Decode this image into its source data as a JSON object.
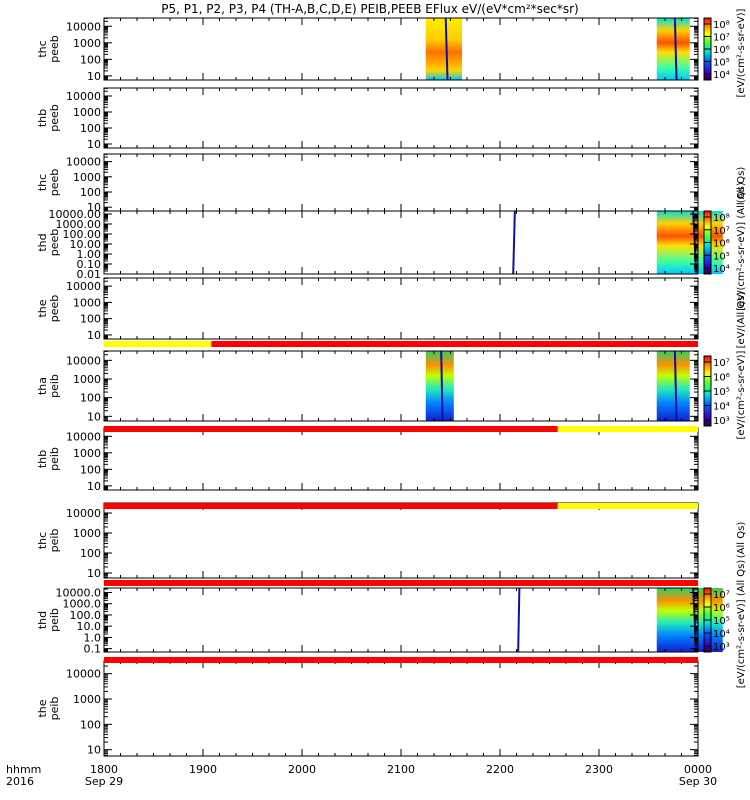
{
  "title": "P5, P1, P2, P3, P4 (TH-A,B,C,D,E) PEIB,PEEB EFlux eV/(eV*cm²*sec*sr)",
  "chart_data": {
    "type": "heatmap",
    "x_label_row1": "hhmm",
    "x_label_row2": "2016",
    "x_range": [
      "1800",
      "0000"
    ],
    "x_ticks": [
      {
        "time": 1800,
        "label": "1800",
        "sub": "Sep 29"
      },
      {
        "time": 1900,
        "label": "1900",
        "sub": ""
      },
      {
        "time": 2000,
        "label": "2000",
        "sub": ""
      },
      {
        "time": 2100,
        "label": "2100",
        "sub": ""
      },
      {
        "time": 2200,
        "label": "2200",
        "sub": ""
      },
      {
        "time": 2300,
        "label": "2300",
        "sub": ""
      },
      {
        "time": 2400,
        "label": "0000",
        "sub": "Sep 30"
      }
    ],
    "panels": [
      {
        "probe": "thc",
        "product": "peeb",
        "ylabel": "thc\npeeb",
        "yticks": [
          "10",
          "100",
          "1000",
          "10000"
        ],
        "ylim_log": [
          0.75,
          4.5
        ],
        "blocks": [
          {
            "t0": 2075,
            "t1": 2097,
            "style": "warm"
          },
          {
            "t0": 2335,
            "t1": 2355,
            "style": "mixed"
          }
        ]
      },
      {
        "probe": "thb",
        "product": "peeb",
        "ylabel": "thb\npeeb",
        "yticks": [
          "10",
          "100",
          "1000",
          "10000"
        ],
        "ylim_log": [
          0.75,
          4.5
        ],
        "blocks": []
      },
      {
        "probe": "thc",
        "product": "peeb",
        "ylabel": "thc\npeeb",
        "yticks": [
          "10",
          "100",
          "1000",
          "10000"
        ],
        "ylim_log": [
          0.75,
          4.5
        ],
        "blocks": []
      },
      {
        "probe": "thd",
        "product": "peeb",
        "ylabel": "thd\npeeb",
        "yticks": [
          "0.01",
          "0.10",
          "1.00",
          "10.00",
          "100.00",
          "1000.00",
          "10000.00"
        ],
        "ylim_log": [
          -2,
          4.3
        ],
        "blocks": [
          {
            "t0": 2180,
            "t1": 2200,
            "style": "mixed"
          },
          {
            "t0": 2335,
            "t1": 2375,
            "style": "mixed"
          }
        ]
      },
      {
        "probe": "the",
        "product": "peeb",
        "ylabel": "the\npeeb",
        "yticks": [
          "10",
          "100",
          "1000",
          "10000"
        ],
        "ylim_log": [
          0.75,
          4.5
        ],
        "blocks": []
      },
      {
        "probe": "tha",
        "product": "peib",
        "ylabel": "tha\npeib",
        "yticks": [
          "10",
          "100",
          "1000",
          "10000"
        ],
        "ylim_log": [
          0.75,
          4.5
        ],
        "blocks": [
          {
            "t0": 2075,
            "t1": 2092,
            "style": "ion"
          },
          {
            "t0": 2335,
            "t1": 2355,
            "style": "ion"
          }
        ]
      },
      {
        "probe": "thb",
        "product": "peib",
        "ylabel": "thb\npeib",
        "yticks": [
          "10",
          "100",
          "1000",
          "10000"
        ],
        "ylim_log": [
          0.75,
          4.5
        ],
        "blocks": []
      },
      {
        "probe": "thc",
        "product": "peib",
        "ylabel": "thc\npeib",
        "yticks": [
          "10",
          "100",
          "1000",
          "10000"
        ],
        "ylim_log": [
          0.75,
          4.5
        ],
        "blocks": []
      },
      {
        "probe": "thd",
        "product": "peib",
        "ylabel": "thd\npeib",
        "yticks": [
          "0.1",
          "1.0",
          "10.0",
          "100.0",
          "1000.0",
          "10000.0"
        ],
        "ylim_log": [
          -1.3,
          4.4
        ],
        "blocks": [
          {
            "t0": 2180,
            "t1": 2205,
            "style": "ion"
          },
          {
            "t0": 2335,
            "t1": 2375,
            "style": "ion"
          }
        ]
      },
      {
        "probe": "the",
        "product": "peib",
        "ylabel": "the\npeib",
        "yticks": [
          "10",
          "100",
          "1000",
          "10000"
        ],
        "ylim_log": [
          0.75,
          4.5
        ],
        "blocks": []
      }
    ],
    "mode_bars": [
      {
        "after_panel": 4,
        "segments": [
          {
            "t0": 1800,
            "t1": 1865,
            "color": "#ffff00"
          },
          {
            "t0": 1865,
            "t1": 2400,
            "color": "#ff0000"
          }
        ]
      },
      {
        "after_panel": 5,
        "segments": [
          {
            "t0": 1800,
            "t1": 2195,
            "color": "#ff0000"
          },
          {
            "t0": 2195,
            "t1": 2400,
            "color": "#ffff00"
          }
        ]
      },
      {
        "after_panel": 6,
        "segments": [
          {
            "t0": 1800,
            "t1": 2195,
            "color": "#ff0000"
          },
          {
            "t0": 2195,
            "t1": 2400,
            "color": "#ffff00"
          }
        ]
      },
      {
        "after_panel": 7,
        "segments": [
          {
            "t0": 1800,
            "t1": 2400,
            "color": "#ff0000"
          }
        ]
      },
      {
        "after_panel": 8,
        "segments": [
          {
            "t0": 1800,
            "t1": 2400,
            "color": "#ff0000"
          }
        ]
      }
    ],
    "colorbars": [
      {
        "after_panel": 0,
        "labels": [
          "10⁴",
          "10⁵",
          "10⁶",
          "10⁷",
          "10⁸"
        ],
        "unit": "[eV/(cm²-s-sr-eV)]"
      },
      {
        "after_panel": 3,
        "labels": [
          "10⁴",
          "10⁵",
          "10⁶",
          "10⁷",
          "10⁸"
        ],
        "unit": "[eV/(cm²-s-sr-eV)] (All Qs)"
      },
      {
        "after_panel": 5,
        "labels": [
          "10³",
          "10⁴",
          "10⁵",
          "10⁶",
          "10⁷"
        ],
        "unit": "[eV/(cm²-s-sr-eV)]"
      },
      {
        "after_panel": 8,
        "labels": [
          "10³",
          "10⁴",
          "10⁵",
          "10⁶",
          "10⁷"
        ],
        "unit": "[eV/(cm²-s-sr-eV)] (All Qs)"
      }
    ],
    "extra_unit_labels": [
      {
        "near_panel": 2,
        "text": "(All Qs)"
      },
      {
        "near_panel": 4,
        "text": "[eV/(All Qs)"
      },
      {
        "near_panel": 7,
        "text": "(All Qs)"
      }
    ]
  }
}
